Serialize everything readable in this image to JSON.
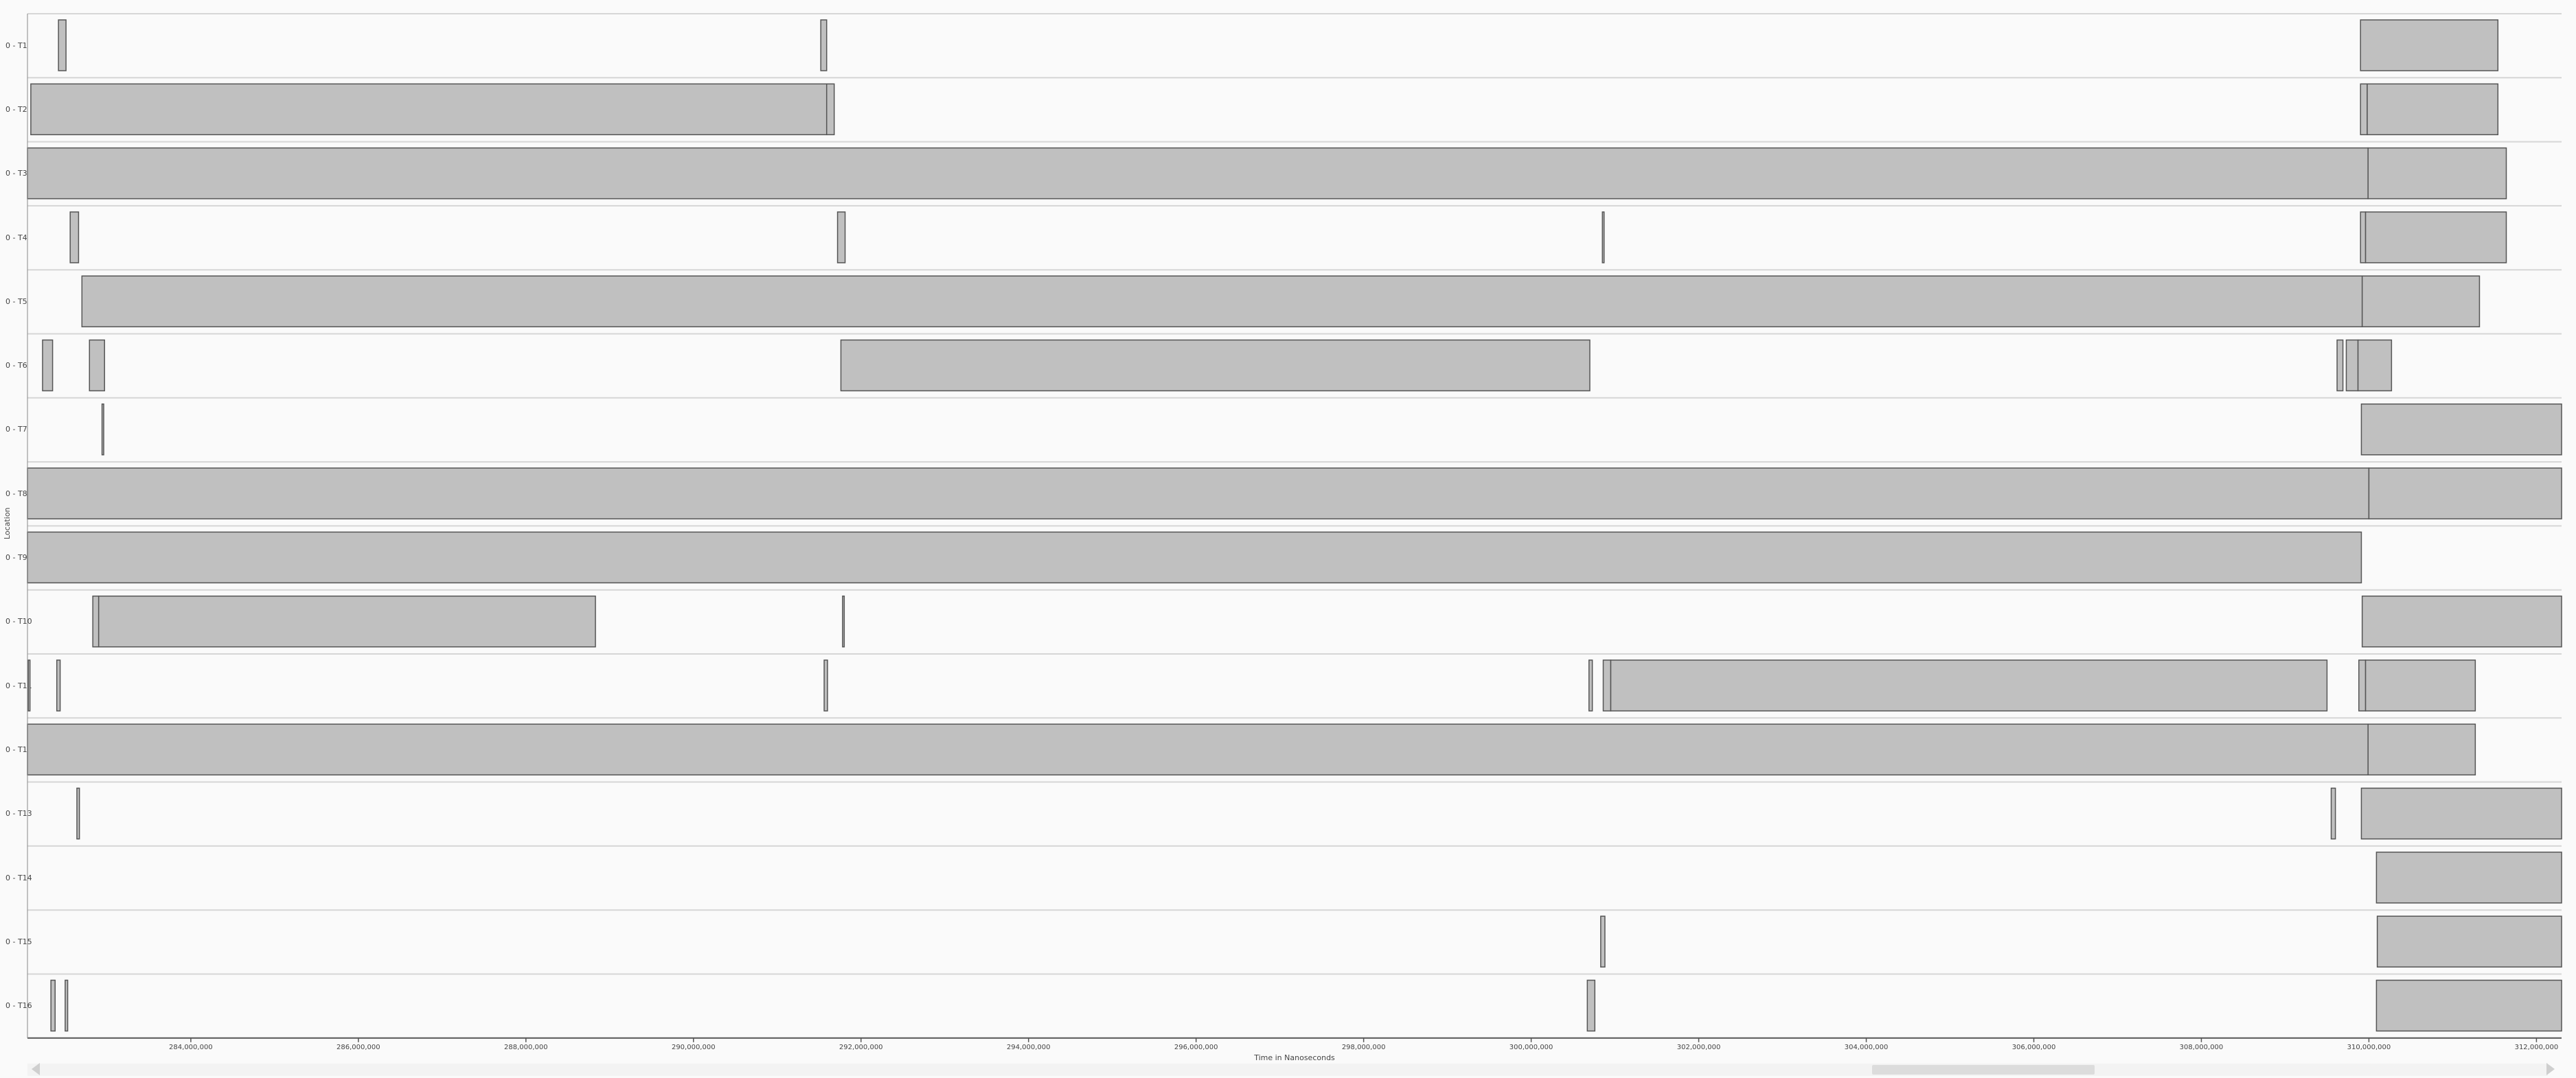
{
  "axis": {
    "y_title": "Location",
    "x_title": "Time in Nanoseconds",
    "ticks": [
      "284,000,000",
      "286,000,000",
      "288,000,000",
      "290,000,000",
      "292,000,000",
      "294,000,000",
      "296,000,000",
      "298,000,000",
      "300,000,000",
      "302,000,000",
      "304,000,000",
      "306,000,000",
      "308,000,000",
      "310,000,000",
      "312,000,000"
    ]
  },
  "colors": {
    "bar_fill": "#c0c0c0",
    "bar_stroke": "#555555",
    "row_line": "#d6d6d6",
    "background": "#fafafa"
  },
  "chart_data": {
    "type": "timeline",
    "x_range": [
      282050000,
      312300000
    ],
    "tick_values": [
      284000000,
      286000000,
      288000000,
      290000000,
      292000000,
      294000000,
      296000000,
      298000000,
      300000000,
      302000000,
      304000000,
      306000000,
      308000000,
      310000000,
      312000000
    ],
    "rows": [
      {
        "label": "0 - T1",
        "segments": [
          [
            282420000,
            282510000
          ],
          [
            291520000,
            291590000
          ],
          [
            309900000,
            311540000
          ]
        ]
      },
      {
        "label": "0 - T2",
        "segments": [
          [
            282090000,
            291590000
          ],
          [
            291590000,
            291680000
          ],
          [
            309900000,
            309980000
          ],
          [
            309980000,
            311540000
          ]
        ]
      },
      {
        "label": "0 - T3",
        "segments": [
          [
            282050000,
            309990000
          ],
          [
            309990000,
            311640000
          ]
        ]
      },
      {
        "label": "0 - T4",
        "segments": [
          [
            282560000,
            282660000
          ],
          [
            291720000,
            291810000
          ],
          [
            300850000,
            300870000
          ],
          [
            309900000,
            309960000
          ],
          [
            309960000,
            311640000
          ]
        ]
      },
      {
        "label": "0 - T5",
        "segments": [
          [
            282700000,
            309920000
          ],
          [
            309920000,
            311320000
          ]
        ]
      },
      {
        "label": "0 - T6",
        "segments": [
          [
            282230000,
            282350000
          ],
          [
            282790000,
            282970000
          ],
          [
            291760000,
            300700000
          ],
          [
            309620000,
            309690000
          ],
          [
            309730000,
            309870000
          ],
          [
            309870000,
            310270000
          ]
        ]
      },
      {
        "label": "0 - T7",
        "segments": [
          [
            282940000,
            282960000
          ],
          [
            309910000,
            312300000
          ]
        ]
      },
      {
        "label": "0 - T8",
        "segments": [
          [
            282050000,
            310000000
          ],
          [
            310000000,
            312300000
          ]
        ]
      },
      {
        "label": "0 - T9",
        "segments": [
          [
            282050000,
            309910000
          ]
        ]
      },
      {
        "label": "0 - T10",
        "segments": [
          [
            282830000,
            282900000
          ],
          [
            282900000,
            288830000
          ],
          [
            291780000,
            291800000
          ],
          [
            309920000,
            312300000
          ]
        ]
      },
      {
        "label": "0 - T11",
        "segments": [
          [
            282060000,
            282080000
          ],
          [
            282400000,
            282440000
          ],
          [
            291560000,
            291600000
          ],
          [
            300690000,
            300730000
          ],
          [
            300860000,
            300950000
          ],
          [
            300950000,
            309500000
          ],
          [
            309880000,
            309960000
          ],
          [
            309960000,
            311270000
          ]
        ]
      },
      {
        "label": "0 - T12",
        "segments": [
          [
            282050000,
            309990000
          ],
          [
            309990000,
            311270000
          ]
        ]
      },
      {
        "label": "0 - T13",
        "segments": [
          [
            282640000,
            282670000
          ],
          [
            309550000,
            309600000
          ],
          [
            309910000,
            312300000
          ]
        ]
      },
      {
        "label": "0 - T14",
        "segments": [
          [
            310090000,
            312300000
          ]
        ]
      },
      {
        "label": "0 - T15",
        "segments": [
          [
            300830000,
            300880000
          ],
          [
            310100000,
            312300000
          ]
        ]
      },
      {
        "label": "0 - T16",
        "segments": [
          [
            282330000,
            282380000
          ],
          [
            282500000,
            282530000
          ],
          [
            300670000,
            300760000
          ],
          [
            310090000,
            312300000
          ]
        ]
      }
    ]
  },
  "scrollbar": {
    "left_arrow_icon": "chevron-left-icon",
    "right_arrow_icon": "chevron-right-icon"
  }
}
